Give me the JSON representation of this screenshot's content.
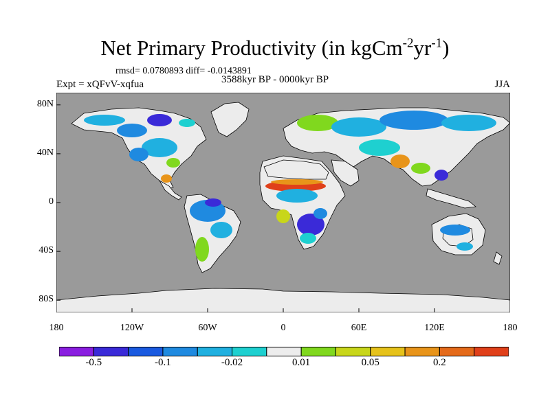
{
  "title": {
    "text": "Net Primary Productivity (in kgCm",
    "sup1": "-2",
    "mid": "yr",
    "sup2": "-1",
    "end": ")"
  },
  "stats": "rmsd= 0.0780893 diff= -0.0143891",
  "period": "3588kyr BP - 0000kyr BP",
  "experiment": "Expt = xQFvV-xqfua",
  "season": "JJA",
  "axes": {
    "y_ticks": [
      {
        "value": 80,
        "label": "80N"
      },
      {
        "value": 40,
        "label": "40N"
      },
      {
        "value": 0,
        "label": "0"
      },
      {
        "value": -40,
        "label": "40S"
      },
      {
        "value": -80,
        "label": "80S"
      }
    ],
    "x_ticks": [
      {
        "value": -180,
        "label": "180"
      },
      {
        "value": -120,
        "label": "120W"
      },
      {
        "value": -60,
        "label": "60W"
      },
      {
        "value": 0,
        "label": "0"
      },
      {
        "value": 60,
        "label": "60E"
      },
      {
        "value": 120,
        "label": "120E"
      },
      {
        "value": 180,
        "label": "180"
      }
    ]
  },
  "colors": {
    "ocean": "#9a9a9a",
    "land_nodata": "#ececec"
  },
  "colorbar": {
    "colors": [
      "#8a1ee0",
      "#3a2ad8",
      "#1a5ae0",
      "#1f8ae0",
      "#20b0e0",
      "#1ed0d0",
      "#ededed",
      "#80d81e",
      "#c8d61a",
      "#e6c21a",
      "#e8941a",
      "#e46a1a",
      "#e0401a"
    ],
    "labels": [
      {
        "text": "-0.5",
        "boundary": 1
      },
      {
        "text": "-0.1",
        "boundary": 3
      },
      {
        "text": "-0.02",
        "boundary": 5
      },
      {
        "text": "0.01",
        "boundary": 7
      },
      {
        "text": "0.05",
        "boundary": 9
      },
      {
        "text": "0.2",
        "boundary": 11
      }
    ]
  }
}
